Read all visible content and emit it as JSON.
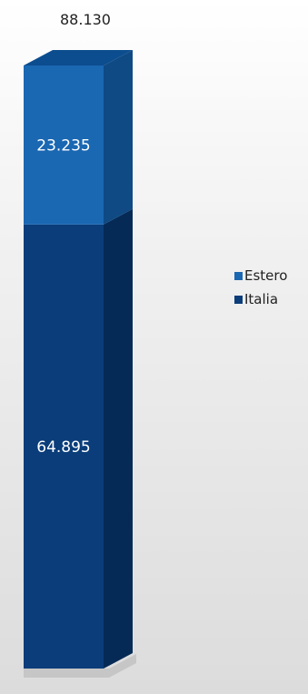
{
  "chart_data": {
    "type": "bar",
    "stacked": true,
    "three_d": true,
    "categories": [
      ""
    ],
    "series": [
      {
        "name": "Italia",
        "values": [
          64895
        ],
        "label": "64.895",
        "color": "#0a3d7a"
      },
      {
        "name": "Estero",
        "values": [
          23235
        ],
        "label": "23.235",
        "color": "#1a67b2"
      }
    ],
    "total": 88130,
    "total_label": "88.130",
    "legend_position": "right",
    "legend": [
      {
        "name": "Estero",
        "color": "#1a67b2"
      },
      {
        "name": "Italia",
        "color": "#0a3d7a"
      }
    ],
    "grid": false
  }
}
